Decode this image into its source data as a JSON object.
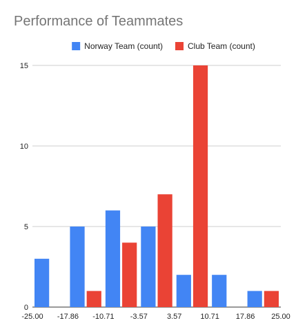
{
  "chart_data": {
    "type": "bar",
    "title": "Performance of Teammates",
    "xlabel": "",
    "ylabel": "",
    "x_tick_labels": [
      "-25.00",
      "-17.86",
      "-10.71",
      "-3.57",
      "3.57",
      "10.71",
      "17.86",
      "25.00"
    ],
    "y_ticks": [
      0,
      5,
      10,
      15
    ],
    "ylim": [
      0,
      15
    ],
    "bins": 7,
    "grid": true,
    "legend_position": "top",
    "series": [
      {
        "name": "Norway Team (count)",
        "color": "#4285f4",
        "values": [
          3,
          5,
          6,
          5,
          2,
          2,
          1
        ]
      },
      {
        "name": "Club Team (count)",
        "color": "#ea4335",
        "values": [
          0,
          1,
          4,
          7,
          15,
          0,
          1
        ]
      }
    ]
  }
}
